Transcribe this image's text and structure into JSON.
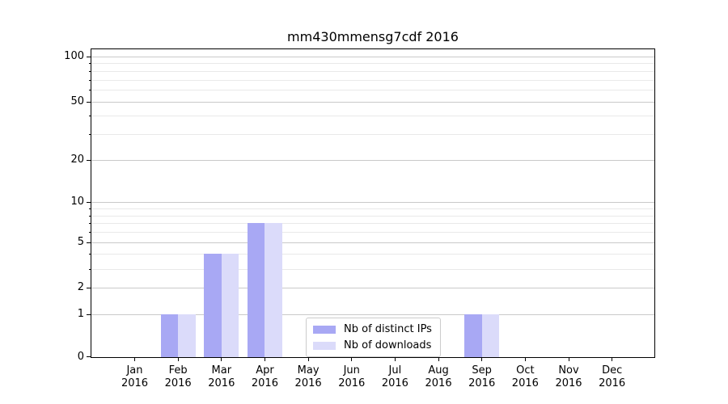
{
  "chart_data": {
    "type": "bar",
    "title": "mm430mmensg7cdf 2016",
    "categories": [
      "Jan",
      "Feb",
      "Mar",
      "Apr",
      "May",
      "Jun",
      "Jul",
      "Aug",
      "Sep",
      "Oct",
      "Nov",
      "Dec"
    ],
    "x_tick_year_line": "2016",
    "series": [
      {
        "name": "Nb of distinct IPs",
        "color": "#a8a8f4",
        "values": [
          0,
          1,
          4,
          7,
          0,
          0,
          0,
          0,
          1,
          0,
          0,
          0
        ]
      },
      {
        "name": "Nb of downloads",
        "color": "#dbdbfa",
        "values": [
          0,
          1,
          4,
          7,
          0,
          0,
          0,
          0,
          1,
          0,
          0,
          0
        ]
      }
    ],
    "y_axis": {
      "scale": "log1p",
      "major_ticks": [
        0,
        1,
        2,
        5,
        10,
        20,
        50,
        100
      ],
      "minor_gridlines": [
        3,
        4,
        6,
        7,
        8,
        9,
        30,
        40,
        60,
        70,
        80,
        90
      ],
      "range": [
        0,
        118
      ]
    },
    "xlabel": "",
    "ylabel": "",
    "grid": "on",
    "legend": {
      "position": "lower center",
      "entries": [
        "Nb of distinct IPs",
        "Nb of downloads"
      ]
    },
    "colors": {
      "bar_distinct_ips": "#a8a8f4",
      "bar_downloads": "#dbdbfa",
      "grid_major": "#c9c9c9",
      "grid_minor": "#e9e9e9",
      "axis": "#000000",
      "legend_border": "#cccccc"
    }
  }
}
